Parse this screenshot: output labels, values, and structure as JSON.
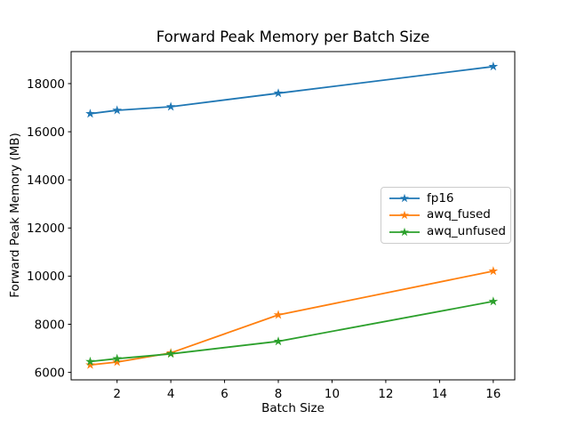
{
  "window": {
    "background": "#ffffff"
  },
  "chart_data": {
    "type": "line",
    "title": "Forward Peak Memory per Batch Size",
    "xlabel": "Batch Size",
    "ylabel": "Forward Peak Memory (MB)",
    "x": [
      1,
      2,
      4,
      8,
      16
    ],
    "series": [
      {
        "name": "fp16",
        "color": "#1f77b4",
        "marker": "star",
        "values": [
          16750,
          16890,
          17040,
          17600,
          18710
        ]
      },
      {
        "name": "awq_fused",
        "color": "#ff7f0e",
        "marker": "star",
        "values": [
          6310,
          6430,
          6810,
          8390,
          10210
        ]
      },
      {
        "name": "awq_unfused",
        "color": "#2ca02c",
        "marker": "star",
        "values": [
          6450,
          6570,
          6770,
          7290,
          8950
        ]
      }
    ],
    "xticks": [
      2,
      4,
      6,
      8,
      10,
      12,
      14,
      16
    ],
    "yticks": [
      6000,
      8000,
      10000,
      12000,
      14000,
      16000,
      18000
    ],
    "xlim": [
      0.29,
      16.8
    ],
    "ylim": [
      5690,
      19330
    ],
    "grid": false,
    "legend": {
      "position": "center-right",
      "entries": [
        "fp16",
        "awq_fused",
        "awq_unfused"
      ]
    }
  }
}
